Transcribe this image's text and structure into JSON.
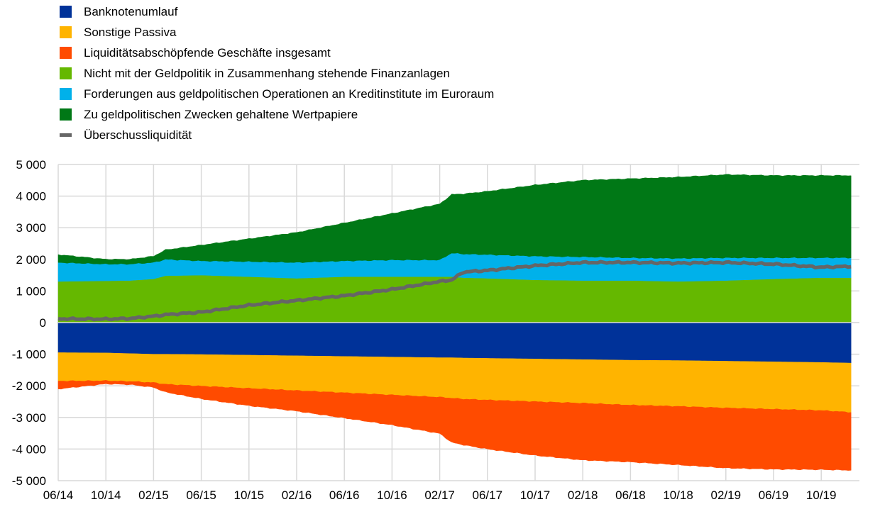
{
  "chart_data": {
    "type": "area",
    "title": "",
    "xlabel": "",
    "ylabel": "",
    "ylim": [
      -5000,
      5000
    ],
    "yticks": [
      "5 000",
      "4 000",
      "3 000",
      "2 000",
      "1 000",
      "0",
      "-1 000",
      "-2 000",
      "-3 000",
      "-4 000",
      "-5 000"
    ],
    "ytick_values": [
      5000,
      4000,
      3000,
      2000,
      1000,
      0,
      -1000,
      -2000,
      -3000,
      -4000,
      -5000
    ],
    "xticks": [
      "06/14",
      "10/14",
      "02/15",
      "06/15",
      "10/15",
      "02/16",
      "06/16",
      "10/16",
      "02/17",
      "06/17",
      "10/17",
      "02/18",
      "06/18",
      "10/18",
      "02/19",
      "06/19",
      "10/19"
    ],
    "grid": true,
    "legend_position": "top-left",
    "x": [
      "06/14",
      "10/14",
      "12/14",
      "02/15",
      "03/15",
      "06/15",
      "10/15",
      "02/16",
      "06/16",
      "10/16",
      "02/17",
      "03/17",
      "04/17",
      "06/17",
      "10/17",
      "02/18",
      "06/18",
      "10/18",
      "02/19",
      "06/19",
      "10/19",
      "12/19"
    ],
    "x_month_index": [
      0,
      4,
      6,
      8,
      9,
      12,
      16,
      20,
      24,
      28,
      32,
      33,
      34,
      36,
      40,
      44,
      48,
      52,
      56,
      60,
      64,
      66.5
    ],
    "series": [
      {
        "name": "Banknotenumlauf",
        "color": "#003299",
        "side": "negative",
        "values": [
          -950,
          -960,
          -980,
          -1000,
          -1000,
          -1010,
          -1030,
          -1050,
          -1070,
          -1090,
          -1110,
          -1110,
          -1120,
          -1130,
          -1150,
          -1170,
          -1190,
          -1200,
          -1220,
          -1240,
          -1260,
          -1280
        ]
      },
      {
        "name": "Sonstige Passiva",
        "color": "#FFB400",
        "side": "negative",
        "values": [
          -900,
          -880,
          -880,
          -900,
          -950,
          -1000,
          -1050,
          -1100,
          -1150,
          -1200,
          -1250,
          -1280,
          -1300,
          -1320,
          -1350,
          -1380,
          -1420,
          -1450,
          -1480,
          -1500,
          -1520,
          -1560
        ]
      },
      {
        "name": "Liquiditätsabschöpfende Geschäfte insgesamt",
        "color": "#FF4B00",
        "side": "negative",
        "values": [
          -250,
          -100,
          -100,
          -150,
          -250,
          -400,
          -550,
          -650,
          -800,
          -950,
          -1150,
          -1400,
          -1450,
          -1550,
          -1700,
          -1800,
          -1800,
          -1850,
          -1900,
          -1900,
          -1870,
          -1830
        ]
      },
      {
        "name": "Nicht mit der Geldpolitik in Zusammenhang stehende Finanzanlagen",
        "color": "#65B800",
        "side": "positive",
        "values": [
          1300,
          1320,
          1330,
          1380,
          1480,
          1500,
          1450,
          1400,
          1450,
          1450,
          1450,
          1450,
          1420,
          1400,
          1350,
          1330,
          1330,
          1300,
          1330,
          1380,
          1420,
          1420
        ]
      },
      {
        "name": "Forderungen aus geldpolitischen Operationen an Kreditinstitute im Euroraum",
        "color": "#00B1EA",
        "side": "positive",
        "values": [
          600,
          530,
          520,
          520,
          520,
          450,
          480,
          500,
          500,
          530,
          530,
          750,
          750,
          750,
          750,
          750,
          720,
          730,
          720,
          670,
          630,
          630
        ]
      },
      {
        "name": "Zu geldpolitischen Zwecken gehaltene Wertpapiere",
        "color": "#007816",
        "side": "positive",
        "values": [
          250,
          150,
          150,
          200,
          300,
          500,
          720,
          950,
          1200,
          1470,
          1770,
          1850,
          1900,
          2000,
          2250,
          2420,
          2500,
          2570,
          2630,
          2600,
          2600,
          2600
        ]
      },
      {
        "name": "Überschussliquidität",
        "color": "#666666",
        "type": "line",
        "values": [
          120,
          110,
          130,
          200,
          250,
          330,
          550,
          700,
          850,
          1050,
          1300,
          1350,
          1600,
          1650,
          1800,
          1900,
          1900,
          1880,
          1900,
          1850,
          1750,
          1780
        ]
      }
    ]
  }
}
